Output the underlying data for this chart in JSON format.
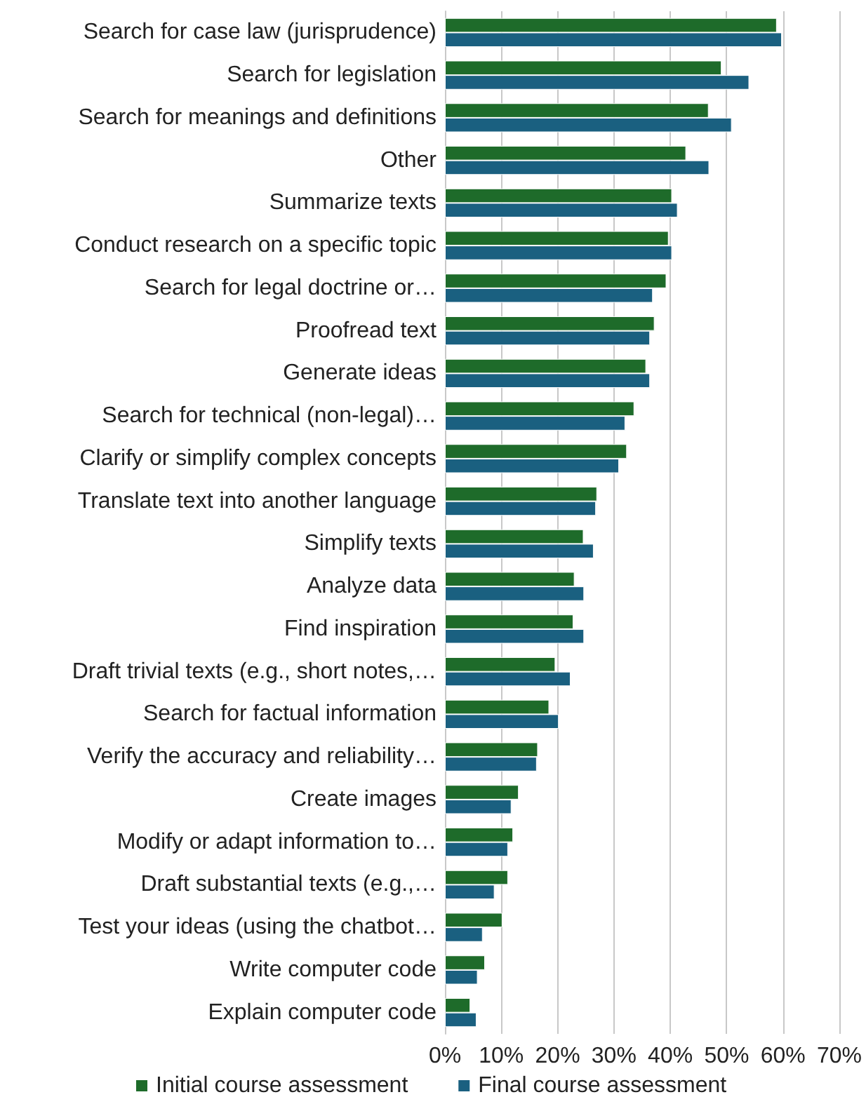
{
  "chart_data": {
    "type": "bar",
    "orientation": "horizontal",
    "categories": [
      "Search for case law (jurisprudence)",
      "Search for legislation",
      "Search for meanings and definitions",
      "Other",
      "Summarize texts",
      "Conduct research on a specific topic",
      "Search for legal doctrine or…",
      "Proofread text",
      "Generate ideas",
      "Search for technical (non-legal)…",
      "Clarify or simplify complex concepts",
      "Translate text into another language",
      "Simplify texts",
      "Analyze data",
      "Find inspiration",
      "Draft trivial texts (e.g., short notes,…",
      "Search for factual information",
      "Verify the accuracy and reliability…",
      "Create images",
      "Modify or adapt information to…",
      "Draft substantial texts (e.g.,…",
      "Test your ideas (using the chatbot…",
      "Write computer code",
      "Explain computer code"
    ],
    "series": [
      {
        "name": "Initial course assessment",
        "color": "#1e6b2a",
        "values": [
          58.9,
          49.1,
          46.8,
          42.8,
          40.3,
          39.7,
          39.3,
          37.2,
          35.7,
          33.6,
          32.3,
          27.0,
          24.6,
          23.0,
          22.8,
          19.6,
          18.5,
          16.5,
          13.1,
          12.1,
          11.2,
          10.2,
          7.1,
          4.5
        ]
      },
      {
        "name": "Final course assessment",
        "color": "#1a6080",
        "values": [
          59.8,
          54.0,
          50.9,
          46.9,
          41.3,
          40.3,
          36.9,
          36.4,
          36.4,
          32.0,
          30.9,
          26.8,
          26.4,
          24.7,
          24.7,
          22.3,
          20.2,
          16.3,
          11.8,
          11.2,
          8.8,
          6.7,
          5.8,
          5.6
        ]
      }
    ],
    "xlim": [
      0,
      70
    ],
    "xticks": [
      {
        "value": 0,
        "label": "0%"
      },
      {
        "value": 10,
        "label": "10%"
      },
      {
        "value": 20,
        "label": "20%"
      },
      {
        "value": 30,
        "label": "30%"
      },
      {
        "value": 40,
        "label": "40%"
      },
      {
        "value": 50,
        "label": "50%"
      },
      {
        "value": 60,
        "label": "60%"
      },
      {
        "value": 70,
        "label": "70%"
      }
    ],
    "grid": "x",
    "legend": "bottom"
  }
}
